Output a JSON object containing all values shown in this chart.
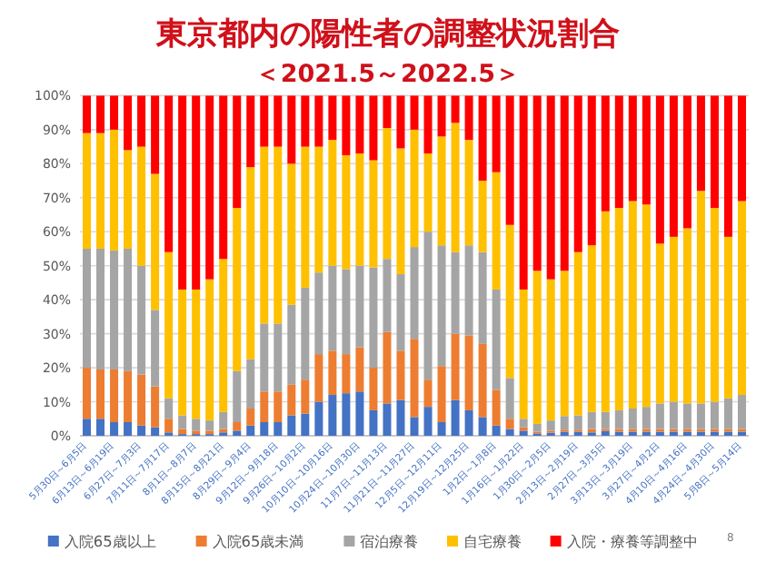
{
  "chart_data": {
    "type": "bar",
    "stacked": true,
    "title": "東京都内の陽性者の調整状況割合",
    "subtitle": "＜2021.5～2022.5＞",
    "categories": [
      "5月30日～6月5日",
      null,
      "6月13日～6月19日",
      null,
      "6月27日～7月3日",
      null,
      "7月11日～7月17日",
      null,
      "8月1日～8月7日",
      null,
      "8月15日～8月21日",
      null,
      "8月29日～9月4日",
      null,
      "9月12日～9月18日",
      null,
      "9月26日～10月2日",
      null,
      "10月10日～10月16日",
      null,
      "10月24日～10月30日",
      null,
      "11月7日～11月13日",
      null,
      "11月21日～11月27日",
      null,
      "12月5日～12月11日",
      null,
      "12月19日～12月25日",
      null,
      "1月2日～1月8日",
      null,
      "1月16日～1月22日",
      null,
      "1月30日～2月5日",
      null,
      "2月13日～2月19日",
      null,
      "2月27日～3月5日",
      null,
      "3月13日～3月19日",
      null,
      "3月27日～4月2日",
      null,
      "4月10日～4月16日",
      null,
      "4月24日～4月30日",
      null,
      "5月8日～5月14日"
    ],
    "series": [
      {
        "name": "入院65歳以上",
        "color": "#4472c4",
        "values": [
          5,
          5,
          4,
          4,
          3,
          2.5,
          1,
          0.5,
          0.5,
          0.5,
          1,
          1.5,
          3,
          4,
          4,
          6,
          6.5,
          10,
          12,
          12.5,
          13,
          7.5,
          9.5,
          10.5,
          5.5,
          8.5,
          4,
          10.5,
          7.5,
          5.5,
          3,
          2,
          1.5,
          0.7,
          0.9,
          1.2,
          1.2,
          1,
          1.4,
          1.2,
          1.2,
          1.2,
          1.2,
          1.2,
          1.2,
          1.2,
          1.2,
          1.2,
          1.2
        ]
      },
      {
        "name": "入院65歳未満",
        "color": "#ed7d31",
        "values": [
          15,
          14.5,
          15.5,
          15,
          15,
          12,
          4,
          1.5,
          1,
          1,
          1,
          2.5,
          5,
          9,
          9,
          9,
          10,
          14,
          13,
          11.5,
          13,
          12.5,
          21,
          14.5,
          23,
          8,
          16.5,
          19.5,
          22,
          21.5,
          10.5,
          3,
          1,
          0.5,
          0.6,
          0.6,
          0.6,
          1,
          0.6,
          0.8,
          0.8,
          0.8,
          0.8,
          0.8,
          0.8,
          0.8,
          0.8,
          0.8,
          0.8
        ]
      },
      {
        "name": "宿泊療養",
        "color": "#a5a5a5",
        "values": [
          35,
          35.5,
          35,
          36,
          32,
          22.5,
          6,
          4,
          3.5,
          3,
          5,
          15,
          14.5,
          20,
          20,
          23.5,
          27,
          24,
          25,
          25,
          24,
          29.5,
          21.5,
          22.5,
          27,
          43.5,
          35.5,
          24,
          26.5,
          27,
          29.5,
          12,
          2.5,
          2.3,
          3,
          4,
          4.2,
          5,
          5,
          5.5,
          6,
          6.5,
          7.5,
          8,
          7.5,
          7.5,
          8,
          9,
          10
        ]
      },
      {
        "name": "自宅療養",
        "color": "#ffc000",
        "values": [
          34,
          34,
          35.5,
          29,
          35,
          40,
          43,
          37,
          38,
          41.5,
          45,
          48,
          56.5,
          52,
          52,
          41.5,
          41.5,
          37,
          37,
          33.5,
          33,
          31.5,
          38.5,
          37,
          34.5,
          23,
          32,
          38,
          31,
          21,
          34.5,
          45,
          38,
          45,
          41.5,
          42.7,
          48,
          49,
          59,
          59.5,
          61,
          59.5,
          47,
          48.5,
          51.5,
          62.5,
          57,
          47.5,
          57
        ]
      },
      {
        "name": "入院・療養等調整中",
        "color": "#ff0000",
        "values": [
          11,
          11,
          10,
          16,
          15,
          23,
          46,
          57,
          57,
          54,
          48,
          33,
          21,
          15,
          15,
          20,
          15,
          15,
          13,
          17.5,
          17,
          19,
          9.5,
          15.5,
          10,
          17,
          12,
          8,
          13,
          25,
          22.5,
          38,
          57,
          51.5,
          54,
          51.5,
          46,
          44,
          34,
          33,
          31,
          32,
          43.5,
          41.5,
          39,
          28,
          33,
          41.5,
          31
        ]
      }
    ],
    "ylim": [
      0,
      100
    ],
    "yticks": [
      {
        "value": 0,
        "label": "0%"
      },
      {
        "value": 10,
        "label": "10%"
      },
      {
        "value": 20,
        "label": "20%"
      },
      {
        "value": 30,
        "label": "30%"
      },
      {
        "value": 40,
        "label": "40%"
      },
      {
        "value": 50,
        "label": "50%"
      },
      {
        "value": 60,
        "label": "60%"
      },
      {
        "value": 70,
        "label": "70%"
      },
      {
        "value": 80,
        "label": "80%"
      },
      {
        "value": 90,
        "label": "90%"
      },
      {
        "value": 100,
        "label": "100%"
      }
    ],
    "grid": "y",
    "legend": "bottom",
    "annotations": [
      "8"
    ]
  }
}
